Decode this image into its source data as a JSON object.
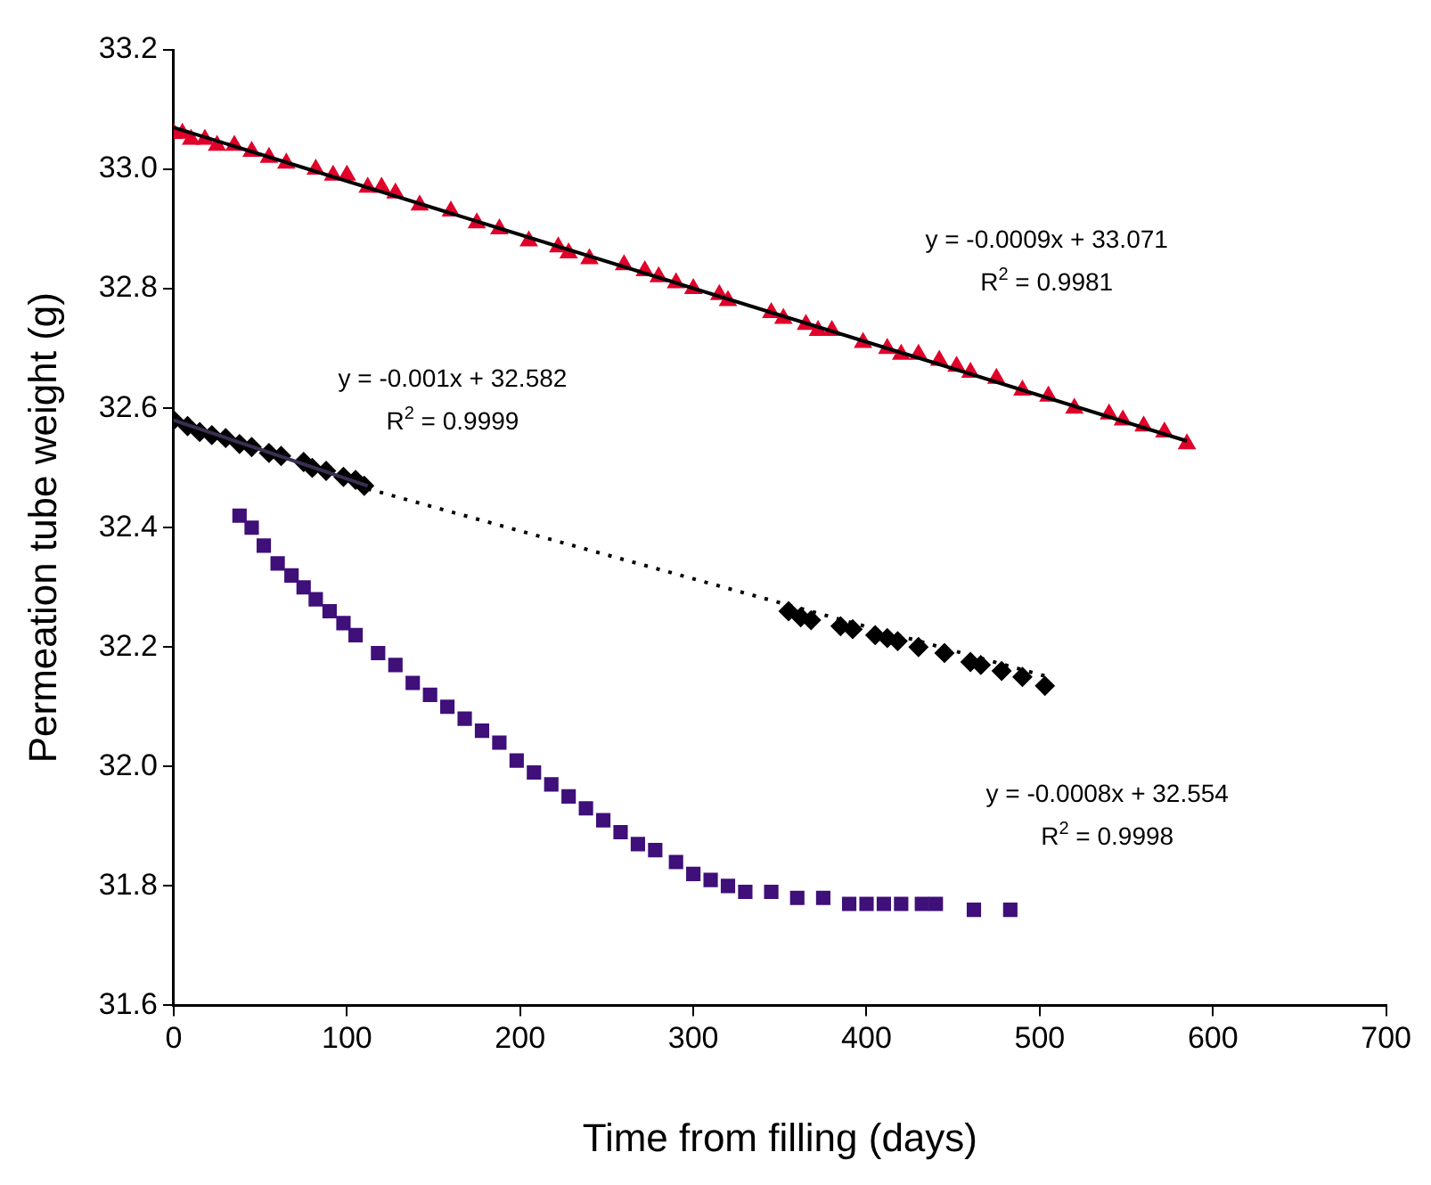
{
  "chart_data": {
    "type": "scatter",
    "xlabel": "Time from filling (days)",
    "ylabel": "Permeation tube weight (g)",
    "xlim": [
      0,
      700
    ],
    "xticks": [
      0,
      100,
      200,
      300,
      400,
      500,
      600,
      700
    ],
    "ylim": [
      31.6,
      33.2
    ],
    "yticks": [
      31.6,
      31.8,
      {
        "value": 32,
        "label": "32.0"
      },
      32.2,
      32.4,
      32.6,
      32.8,
      {
        "value": 33,
        "label": "33.0"
      },
      33.2
    ],
    "grid": false,
    "legend": false,
    "series": [
      {
        "marker": "triangle",
        "color": "#e0002a",
        "x": [
          0,
          5,
          10,
          18,
          25,
          35,
          45,
          55,
          65,
          82,
          92,
          100,
          112,
          120,
          128,
          142,
          160,
          175,
          188,
          205,
          222,
          228,
          240,
          260,
          272,
          280,
          290,
          300,
          315,
          320,
          345,
          352,
          365,
          372,
          380,
          398,
          412,
          420,
          430,
          442,
          452,
          460,
          475,
          490,
          505,
          520,
          540,
          548,
          560,
          572,
          585
        ],
        "values": [
          33.06,
          33.06,
          33.05,
          33.05,
          33.04,
          33.04,
          33.03,
          33.02,
          33.01,
          33.0,
          32.99,
          32.99,
          32.97,
          32.97,
          32.96,
          32.94,
          32.93,
          32.91,
          32.9,
          32.88,
          32.87,
          32.86,
          32.85,
          32.84,
          32.83,
          32.82,
          32.81,
          32.8,
          32.79,
          32.78,
          32.76,
          32.75,
          32.74,
          32.73,
          32.73,
          32.71,
          32.7,
          32.69,
          32.69,
          32.68,
          32.67,
          32.66,
          32.65,
          32.63,
          32.62,
          32.6,
          32.59,
          32.58,
          32.57,
          32.56,
          32.54
        ]
      },
      {
        "marker": "diamond",
        "color": "#000000",
        "x": [
          0,
          8,
          15,
          22,
          30,
          38,
          45,
          55,
          62,
          75,
          80,
          88,
          98,
          105,
          110,
          355,
          362,
          368,
          385,
          392,
          405,
          412,
          418,
          430,
          445,
          460,
          466,
          478,
          490,
          503
        ],
        "values": [
          32.58,
          32.57,
          32.56,
          32.555,
          32.55,
          32.54,
          32.535,
          32.525,
          32.52,
          32.51,
          32.5,
          32.495,
          32.485,
          32.48,
          32.47,
          32.26,
          32.25,
          32.245,
          32.235,
          32.23,
          32.22,
          32.215,
          32.21,
          32.2,
          32.19,
          32.175,
          32.17,
          32.16,
          32.15,
          32.135
        ]
      },
      {
        "marker": "square",
        "color": "#3f0f7a",
        "x": [
          38,
          45,
          52,
          60,
          68,
          75,
          82,
          90,
          98,
          105,
          118,
          128,
          138,
          148,
          158,
          168,
          178,
          188,
          198,
          208,
          218,
          228,
          238,
          248,
          258,
          268,
          278,
          290,
          300,
          310,
          320,
          330,
          345,
          360,
          375,
          390,
          400,
          410,
          420,
          432,
          440,
          462,
          483
        ],
        "values": [
          32.42,
          32.4,
          32.37,
          32.34,
          32.32,
          32.3,
          32.28,
          32.26,
          32.24,
          32.22,
          32.19,
          32.17,
          32.14,
          32.12,
          32.1,
          32.08,
          32.06,
          32.04,
          32.01,
          31.99,
          31.97,
          31.95,
          31.93,
          31.91,
          31.89,
          31.87,
          31.86,
          31.84,
          31.82,
          31.81,
          31.8,
          31.79,
          31.79,
          31.78,
          31.78,
          31.77,
          31.77,
          31.77,
          31.77,
          31.77,
          31.77,
          31.76,
          31.76
        ]
      },
      {
        "type": "line",
        "marker": "none",
        "line_style": "solid",
        "color": "#000000",
        "x": [
          0,
          585
        ],
        "values": [
          33.07,
          32.545
        ]
      },
      {
        "type": "line",
        "marker": "none",
        "line_style": "solid",
        "color": "#3a3050",
        "x": [
          0,
          112
        ],
        "values": [
          32.58,
          32.47
        ]
      },
      {
        "type": "line",
        "marker": "none",
        "line_style": "dotted",
        "color": "#000000",
        "x": [
          112,
          505
        ],
        "values": [
          32.465,
          32.15
        ]
      }
    ],
    "annotations": [
      "y = -0.0009x + 33.071",
      "R$^{2}$ = 0.9981",
      "y = -0.001x + 32.582",
      "R$^{2}$ = 0.9999",
      "y = -0.0008x + 32.554",
      "R$^{2}$ = 0.9998"
    ]
  }
}
